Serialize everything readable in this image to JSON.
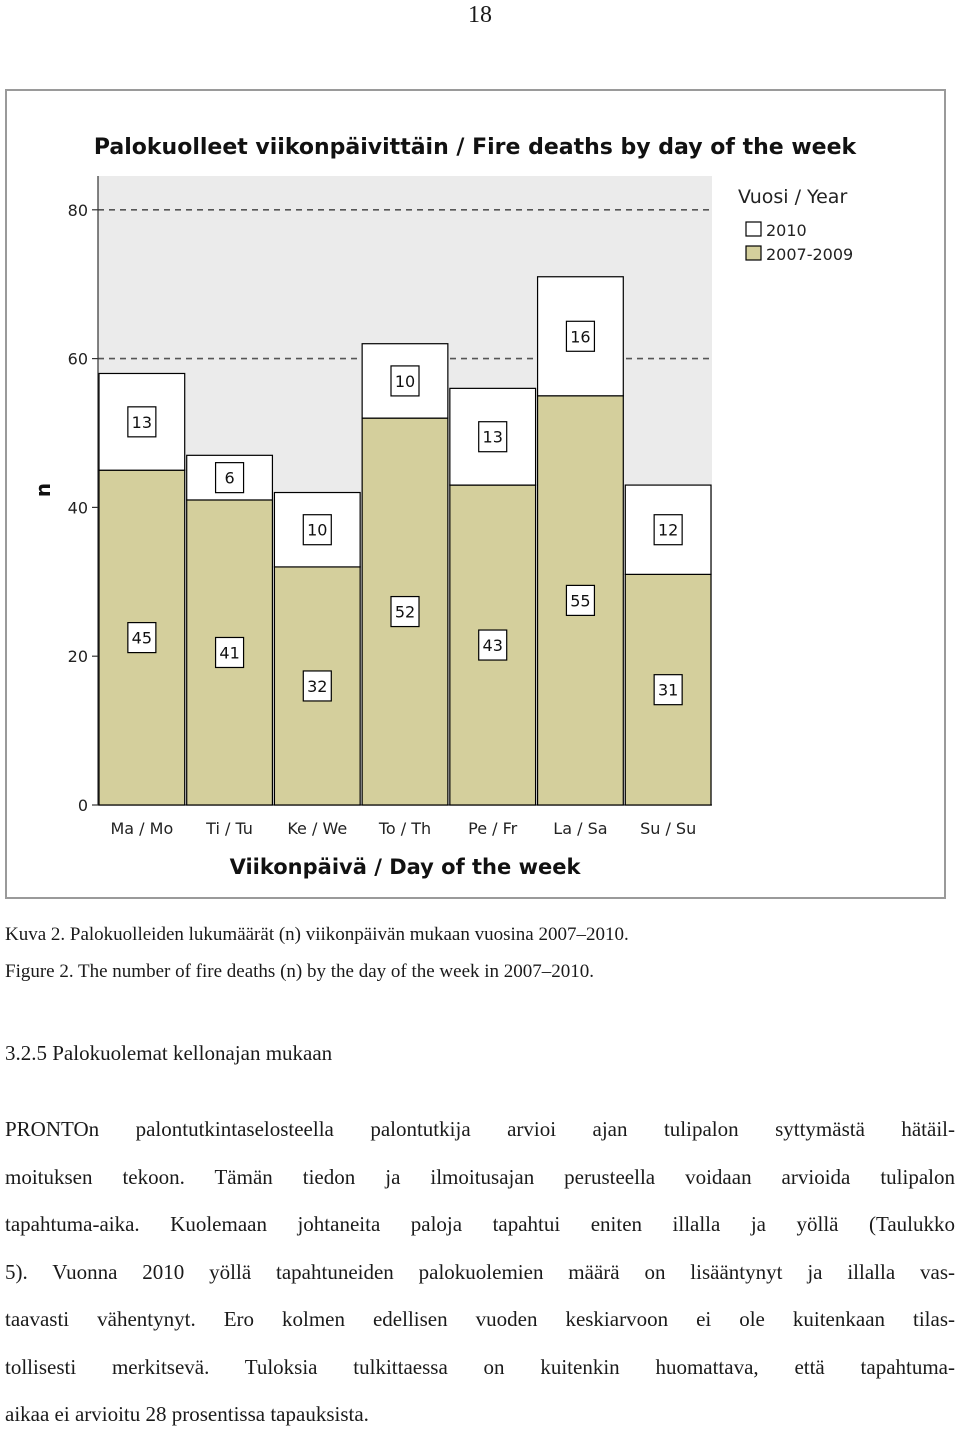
{
  "page": {
    "number": "18"
  },
  "chart_data": {
    "type": "bar",
    "stacked": true,
    "title": "Palokuolleet viikonpäivittäin / Fire deaths by day of the week",
    "xlabel": "Viikonpäivä / Day of the week",
    "ylabel": "n",
    "ylim": [
      0,
      80
    ],
    "yticks": [
      0,
      20,
      40,
      60,
      80
    ],
    "reference_lines": [
      60,
      80
    ],
    "categories": [
      "Ma / Mo",
      "Ti / Tu",
      "Ke / We",
      "To / Th",
      "Pe / Fr",
      "La / Sa",
      "Su / Su"
    ],
    "legend": {
      "title": "Vuosi / Year",
      "placement": "top-right"
    },
    "series": [
      {
        "name": "2007-2009",
        "color": "#d4cf9c",
        "values": [
          45,
          41,
          32,
          52,
          43,
          55,
          31
        ]
      },
      {
        "name": "2010",
        "color": "#ffffff",
        "values": [
          13,
          6,
          10,
          10,
          13,
          16,
          12
        ]
      }
    ],
    "plot_background": "#ebebeb",
    "edge_color": "#000000"
  },
  "caption": {
    "fi": "Kuva 2. Palokuolleiden lukumäärät (n) viikonpäivän mukaan vuosina 2007–2010.",
    "en": "Figure 2. The number of fire deaths (n) by the day of the week in 2007–2010."
  },
  "section": {
    "heading": "3.2.5 Palokuolemat kellonajan mukaan"
  },
  "paragraph": {
    "lines": [
      "PRONTOn palontutkintaselosteella palontutkija arvioi ajan tulipalon syttymästä hätäil-",
      "moituksen tekoon. Tämän tiedon ja ilmoitusajan perusteella voidaan arvioida tulipalon",
      "tapahtuma-aika. Kuolemaan johtaneita paloja tapahtui eniten illalla ja yöllä (Taulukko",
      "5). Vuonna 2010 yöllä tapahtuneiden palokuolemien määrä on lisääntynyt ja illalla vas-",
      "taavasti vähentynyt. Ero kolmen edellisen vuoden keskiarvoon ei ole kuitenkaan tilas-",
      "tollisesti merkitsevä. Tuloksia tulkittaessa on kuitenkin huomattava, että tapahtuma-",
      "aikaa ei arvioitu 28 prosentissa tapauksista."
    ]
  }
}
